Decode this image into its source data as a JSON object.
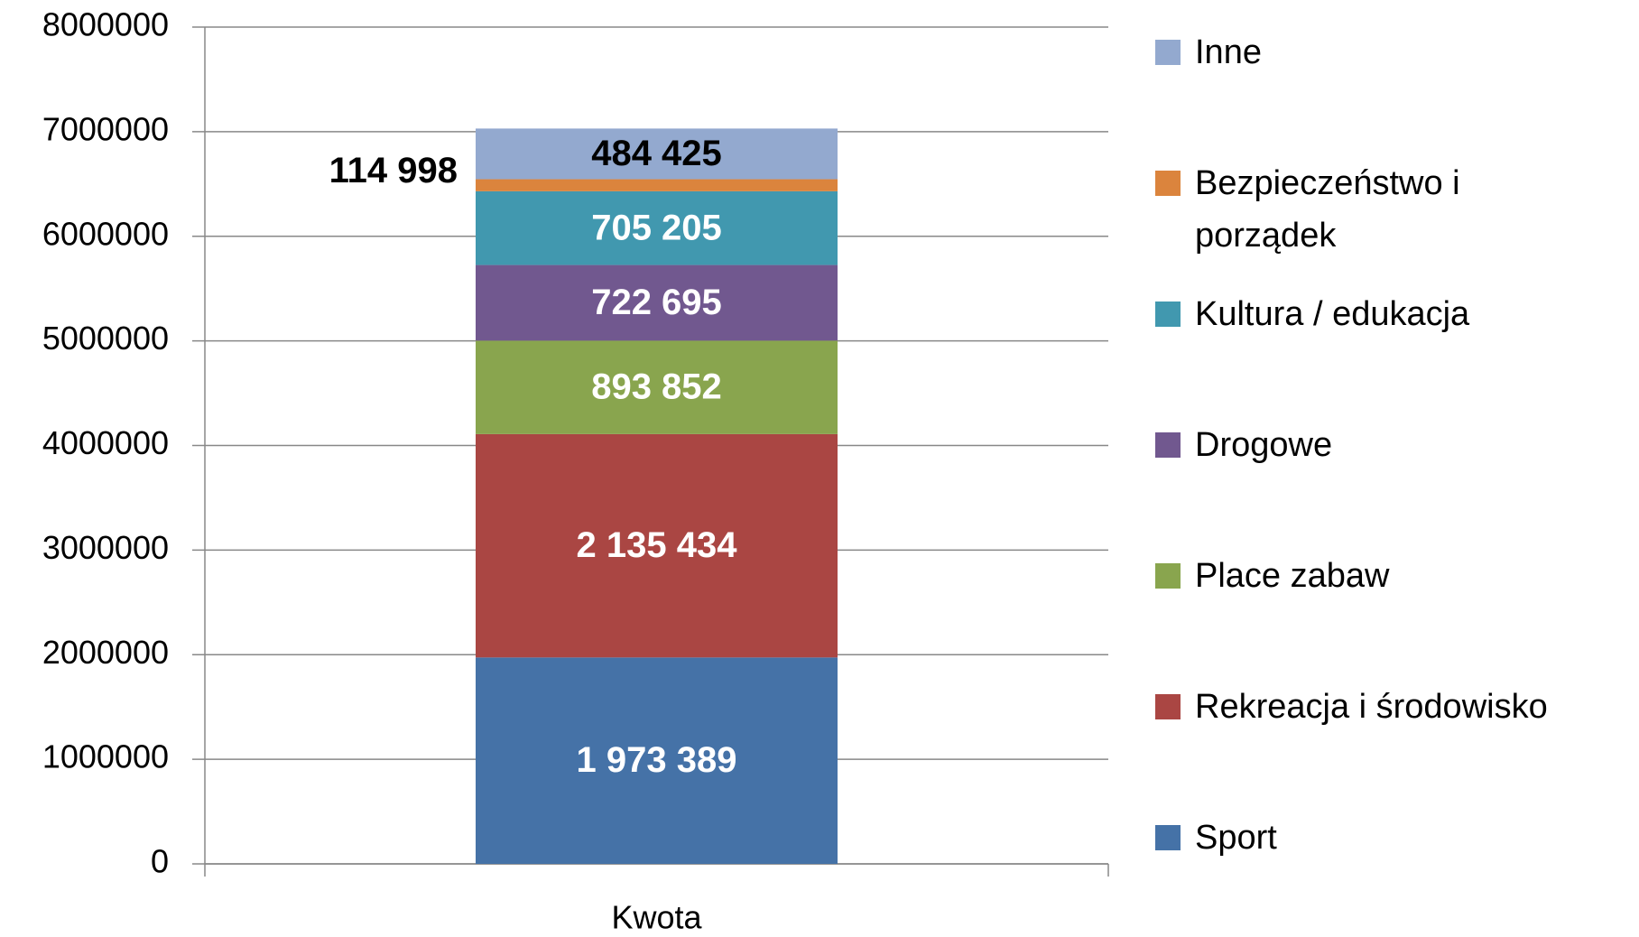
{
  "chart_data": {
    "type": "stacked_bar",
    "categories": [
      "Kwota"
    ],
    "series": [
      {
        "name": "Sport",
        "color": "#4572a7",
        "label_color": "#ffffff",
        "values": [
          1973389
        ],
        "value_labels": [
          "1 973 389"
        ]
      },
      {
        "name": "Rekreacja i środowisko",
        "color": "#aa4643",
        "label_color": "#ffffff",
        "values": [
          2135434
        ],
        "value_labels": [
          "2 135 434"
        ]
      },
      {
        "name": "Place zabaw",
        "color": "#89a54e",
        "label_color": "#ffffff",
        "values": [
          893852
        ],
        "value_labels": [
          "893 852"
        ]
      },
      {
        "name": "Drogowe",
        "color": "#71588f",
        "label_color": "#ffffff",
        "values": [
          722695
        ],
        "value_labels": [
          "722 695"
        ]
      },
      {
        "name": "Kultura / edukacja",
        "color": "#4198af",
        "label_color": "#ffffff",
        "values": [
          705205
        ],
        "value_labels": [
          "705 205"
        ]
      },
      {
        "name": "Bezpieczeństwo i porządek",
        "color": "#db843d",
        "label_color": "#000000",
        "values": [
          114998
        ],
        "value_labels": [
          "114 998"
        ]
      },
      {
        "name": "Inne",
        "color": "#93a9cf",
        "label_color": "#000000",
        "values": [
          484425
        ],
        "value_labels": [
          "484 425"
        ]
      }
    ],
    "ylim": [
      0,
      8000000
    ],
    "yticks": [
      0,
      1000000,
      2000000,
      3000000,
      4000000,
      5000000,
      6000000,
      7000000,
      8000000
    ],
    "grid": true,
    "legend": "right"
  }
}
